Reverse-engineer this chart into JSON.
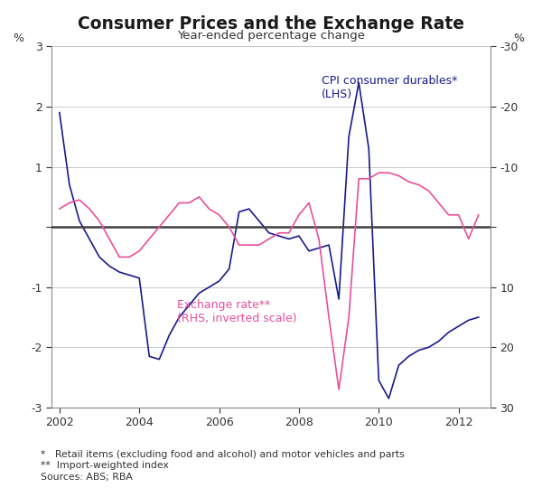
{
  "title": "Consumer Prices and the Exchange Rate",
  "subtitle": "Year-ended percentage change",
  "footnote1": "*   Retail items (excluding food and alcohol) and motor vehicles and parts",
  "footnote2": "**  Import-weighted index",
  "footnote3": "Sources: ABS; RBA",
  "cpi_color": "#1a1a8c",
  "er_color": "#e8509a",
  "zero_line_color": "#404040",
  "grid_color": "#c8c8c8",
  "background_color": "#ffffff",
  "cpi_label": "CPI consumer durables*\n(LHS)",
  "er_label": "Exchange rate**\n(RHS, inverted scale)",
  "xlim": [
    2001.8,
    2012.8
  ],
  "ylim_left": [
    -3,
    3
  ],
  "ylim_right": [
    30,
    -30
  ],
  "yticks_left": [
    -3,
    -2,
    -1,
    0,
    1,
    2,
    3
  ],
  "yticks_right": [
    30,
    20,
    10,
    0,
    -10,
    -20,
    -30
  ],
  "xticks": [
    2002,
    2004,
    2006,
    2008,
    2010,
    2012
  ],
  "cpi_x": [
    2002.0,
    2002.25,
    2002.5,
    2002.75,
    2003.0,
    2003.25,
    2003.5,
    2003.75,
    2004.0,
    2004.25,
    2004.5,
    2004.75,
    2005.0,
    2005.25,
    2005.5,
    2005.75,
    2006.0,
    2006.25,
    2006.5,
    2006.75,
    2007.0,
    2007.25,
    2007.5,
    2007.75,
    2008.0,
    2008.25,
    2008.5,
    2008.75,
    2009.0,
    2009.25,
    2009.5,
    2009.75,
    2010.0,
    2010.25,
    2010.5,
    2010.75,
    2011.0,
    2011.25,
    2011.5,
    2011.75,
    2012.0,
    2012.25,
    2012.5
  ],
  "cpi_y": [
    1.9,
    0.7,
    0.1,
    -0.2,
    -0.5,
    -0.65,
    -0.75,
    -0.8,
    -0.85,
    -2.15,
    -2.2,
    -1.8,
    -1.5,
    -1.3,
    -1.1,
    -1.0,
    -0.9,
    -0.7,
    0.25,
    0.3,
    0.1,
    -0.1,
    -0.15,
    -0.2,
    -0.15,
    -0.4,
    -0.35,
    -0.3,
    -1.2,
    1.5,
    2.4,
    1.3,
    -2.55,
    -2.85,
    -2.3,
    -2.15,
    -2.05,
    -2.0,
    -1.9,
    -1.75,
    -1.65,
    -1.55,
    -1.5
  ],
  "er_x": [
    2002.0,
    2002.25,
    2002.5,
    2002.75,
    2003.0,
    2003.25,
    2003.5,
    2003.75,
    2004.0,
    2004.25,
    2004.5,
    2004.75,
    2005.0,
    2005.25,
    2005.5,
    2005.75,
    2006.0,
    2006.25,
    2006.5,
    2006.75,
    2007.0,
    2007.25,
    2007.5,
    2007.75,
    2008.0,
    2008.25,
    2008.5,
    2008.75,
    2009.0,
    2009.25,
    2009.5,
    2009.75,
    2010.0,
    2010.25,
    2010.5,
    2010.75,
    2011.0,
    2011.25,
    2011.5,
    2011.75,
    2012.0,
    2012.25,
    2012.5
  ],
  "er_y": [
    -3,
    -4,
    -4.5,
    -3,
    -1,
    2,
    5,
    5,
    4,
    2,
    0,
    -2,
    -4,
    -4,
    -5,
    -3,
    -2,
    0,
    3,
    3,
    3,
    2,
    1,
    1,
    -2,
    -4,
    2,
    15,
    27,
    15,
    -8,
    -8,
    -9,
    -9,
    -8.5,
    -7.5,
    -7,
    -6,
    -4,
    -2,
    -2,
    2,
    -2
  ]
}
